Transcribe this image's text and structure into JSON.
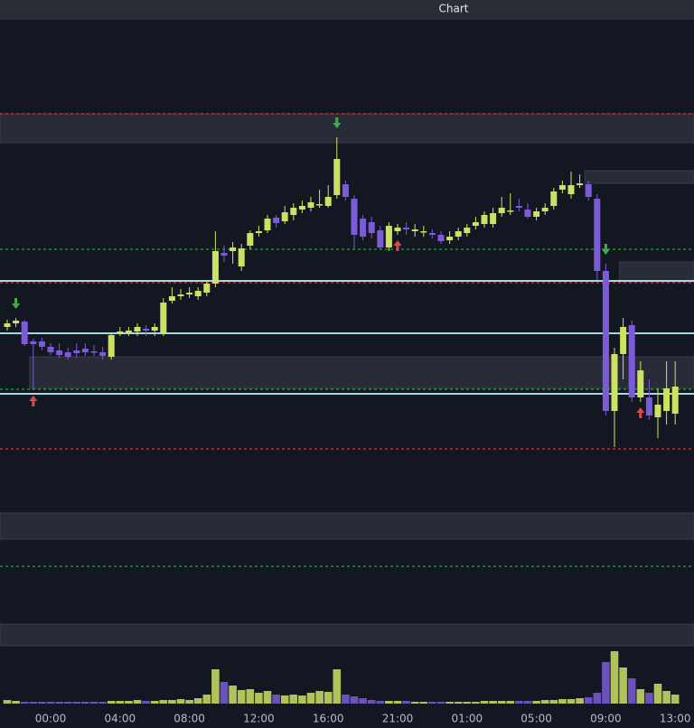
{
  "chart_data": {
    "type": "candlestick",
    "title": "Chart",
    "categories": [
      null,
      null,
      null,
      null,
      null,
      "00:00",
      null,
      null,
      null,
      null,
      null,
      null,
      null,
      "04:00",
      null,
      null,
      null,
      null,
      null,
      null,
      null,
      "08:00",
      null,
      null,
      null,
      null,
      null,
      null,
      null,
      "12:00",
      null,
      null,
      null,
      null,
      null,
      null,
      null,
      "16:00",
      null,
      null,
      null,
      null,
      null,
      null,
      null,
      "21:00",
      null,
      null,
      null,
      null,
      null,
      null,
      null,
      "01:00",
      null,
      null,
      null,
      null,
      null,
      null,
      null,
      "05:00",
      null,
      null,
      null,
      null,
      null,
      null,
      null,
      "09:00",
      null,
      null,
      null,
      null,
      null,
      null,
      null,
      "13:00"
    ],
    "open": [
      438,
      442,
      444,
      422,
      422,
      416,
      412,
      410,
      412,
      414,
      411,
      410,
      405,
      431,
      432,
      433,
      436,
      434,
      430,
      467,
      472,
      474,
      472,
      476,
      486,
      520,
      522,
      505,
      528,
      542,
      545,
      559,
      555,
      562,
      568,
      570,
      574,
      572,
      584,
      596,
      580,
      558,
      554,
      545,
      526,
      544,
      548,
      544,
      544,
      542,
      540,
      534,
      538,
      542,
      550,
      552,
      552,
      564,
      566,
      572,
      568,
      560,
      566,
      572,
      590,
      585,
      595,
      596,
      580,
      500,
      345,
      408,
      440,
      360,
      360,
      338,
      345,
      342
    ],
    "high": [
      446,
      448,
      446,
      425,
      426,
      420,
      420,
      415,
      420,
      420,
      418,
      416,
      432,
      438,
      438,
      442,
      440,
      442,
      470,
      482,
      480,
      482,
      482,
      490,
      544,
      528,
      532,
      530,
      545,
      550,
      562,
      562,
      572,
      575,
      578,
      582,
      590,
      595,
      648,
      600,
      584,
      562,
      560,
      550,
      554,
      552,
      554,
      552,
      550,
      546,
      544,
      544,
      548,
      552,
      560,
      566,
      570,
      582,
      586,
      580,
      575,
      570,
      575,
      592,
      600,
      610,
      607,
      600,
      585,
      508,
      415,
      448,
      445,
      400,
      380,
      370,
      400,
      400
    ],
    "low": [
      434,
      438,
      417,
      368,
      412,
      407,
      404,
      402,
      404,
      406,
      406,
      402,
      402,
      428,
      428,
      428,
      428,
      428,
      428,
      464,
      468,
      470,
      468,
      472,
      482,
      510,
      508,
      500,
      524,
      538,
      542,
      548,
      552,
      556,
      564,
      566,
      570,
      570,
      580,
      578,
      524,
      534,
      536,
      524,
      522,
      540,
      540,
      538,
      538,
      536,
      530,
      530,
      534,
      538,
      546,
      548,
      548,
      560,
      562,
      566,
      558,
      556,
      562,
      568,
      586,
      580,
      592,
      578,
      490,
      340,
      305,
      380,
      355,
      355,
      335,
      315,
      330,
      330
    ],
    "close": [
      442,
      445,
      419,
      419,
      416,
      410,
      407,
      405,
      409,
      410,
      410,
      406,
      429,
      433,
      434,
      438,
      434,
      438,
      465,
      472,
      474,
      476,
      478,
      486,
      522,
      517,
      526,
      525,
      542,
      544,
      558,
      553,
      565,
      570,
      572,
      576,
      574,
      582,
      624,
      582,
      540,
      538,
      542,
      526,
      550,
      548,
      546,
      546,
      544,
      540,
      533,
      538,
      544,
      548,
      554,
      562,
      564,
      570,
      567,
      570,
      560,
      566,
      570,
      588,
      595,
      595,
      597,
      582,
      500,
      345,
      408,
      438,
      360,
      390,
      340,
      352,
      370,
      372
    ],
    "volume": [
      4,
      3,
      2,
      2,
      2,
      2,
      2,
      2,
      2,
      2,
      2,
      2,
      3,
      3,
      3,
      4,
      3,
      3,
      4,
      4,
      5,
      4,
      6,
      10,
      38,
      24,
      20,
      15,
      16,
      12,
      14,
      10,
      9,
      10,
      9,
      12,
      14,
      13,
      38,
      10,
      8,
      6,
      4,
      3,
      3,
      3,
      3,
      2,
      2,
      2,
      2,
      2,
      2,
      2,
      2,
      3,
      3,
      3,
      3,
      3,
      3,
      3,
      4,
      4,
      5,
      5,
      6,
      7,
      12,
      46,
      58,
      40,
      28,
      16,
      12,
      22,
      14,
      10
    ],
    "ylim": [
      85,
      778
    ],
    "volume_ylim": [
      0,
      60
    ],
    "up_color": "#cde163",
    "down_color": "#7b5cd6",
    "levels": [
      {
        "value": 674,
        "color": "#d8343c",
        "style": "dashed"
      },
      {
        "value": 487,
        "color": "#d8343c",
        "style": "dashed"
      },
      {
        "value": 303,
        "color": "#d8343c",
        "style": "dashed"
      },
      {
        "value": 524,
        "color": "#2e9e3e",
        "style": "dashed"
      },
      {
        "value": 369,
        "color": "#2e9e3e",
        "style": "dashed"
      },
      {
        "value": 173,
        "color": "#2e9e3e",
        "style": "dashed"
      },
      {
        "value": 489,
        "color": "#a8d8e0",
        "style": "solid"
      },
      {
        "value": 431,
        "color": "#a8d8e0",
        "style": "solid"
      },
      {
        "value": 364,
        "color": "#a8d8e0",
        "style": "solid"
      }
    ],
    "zones": [
      {
        "high": 674,
        "low": 642,
        "start": 0
      },
      {
        "high": 611,
        "low": 597,
        "start": 67
      },
      {
        "high": 510,
        "low": 488,
        "start": 71
      },
      {
        "high": 405,
        "low": 370,
        "start": 3
      },
      {
        "high": 232,
        "low": 203,
        "start": 0
      },
      {
        "high": 109,
        "low": 85,
        "start": 0
      }
    ],
    "sell_signals": [
      1,
      38,
      69
    ],
    "buy_signals": [
      3,
      45,
      73
    ]
  }
}
